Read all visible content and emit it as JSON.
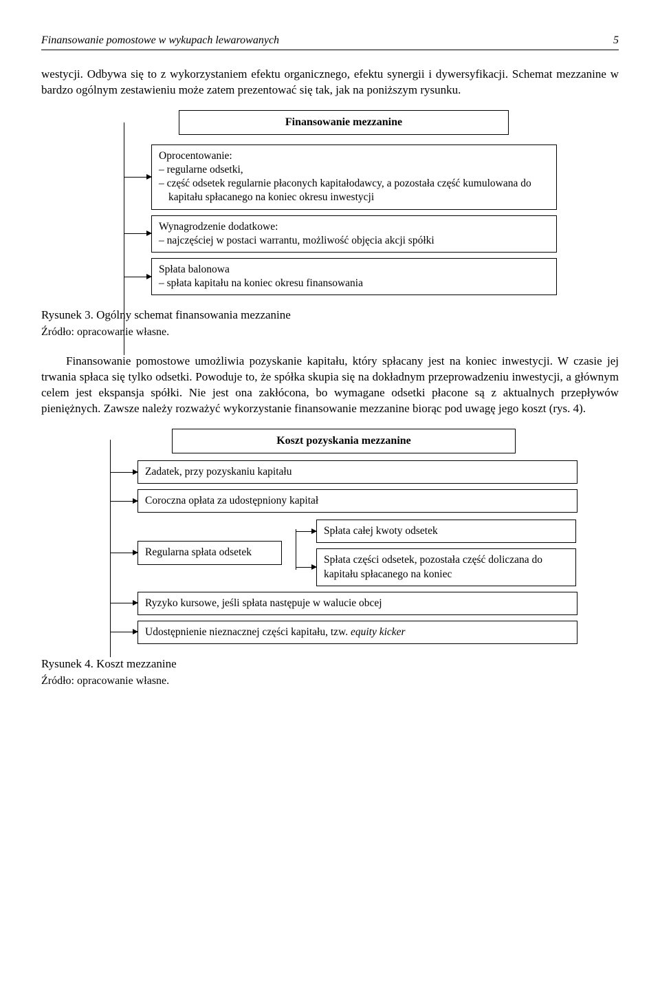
{
  "header": {
    "title": "Finansowanie pomostowe w wykupach lewarowanych",
    "page": "5"
  },
  "para1": "westycji. Odbywa się to z wykorzystaniem efektu organicznego, efektu synergii i dywersyfikacji. Schemat mezzanine w bardzo ogólnym zestawieniu może zatem prezentować się tak, jak na poniższym rysunku.",
  "diagram1": {
    "title": "Finansowanie mezzanine",
    "box1_lead": "Oprocentowanie:",
    "box1_item1": "regularne odsetki,",
    "box1_item2": "część odsetek regularnie płaconych kapitałodawcy, a pozostała część kumulowana do kapitału spłacanego na koniec okresu inwestycji",
    "box2_lead": "Wynagrodzenie dodatkowe:",
    "box2_item1": "najczęściej w postaci warrantu, możliwość objęcia akcji spółki",
    "box3_lead": "Spłata balonowa",
    "box3_item1": "spłata kapitału na koniec okresu finansowania"
  },
  "caption1": "Rysunek 3. Ogólny schemat finansowania mezzanine",
  "source1": "Źródło: opracowanie własne.",
  "para2": "Finansowanie pomostowe umożliwia pozyskanie kapitału, który spłacany jest na koniec inwestycji. W czasie jej trwania spłaca się tylko odsetki. Powoduje to, że spółka skupia się na dokładnym przeprowadzeniu inwestycji, a głównym celem jest ekspansja spółki. Nie jest ona zakłócona, bo wymagane odsetki płacone są z aktualnych przepływów pieniężnych. Zawsze należy rozważyć wykorzystanie finansowanie mezzanine biorąc pod uwagę jego koszt (rys. 4).",
  "diagram2": {
    "title": "Koszt pozyskania mezzanine",
    "b1": "Zadatek, przy pozyskaniu kapitału",
    "b2": "Coroczna opłata za udostępniony kapitał",
    "b3": "Regularna spłata odsetek",
    "b3a": "Spłata całej kwoty odsetek",
    "b3b": "Spłata części odsetek, pozostała część doliczana do kapitału spłacanego na koniec",
    "b4": "Ryzyko kursowe, jeśli spłata następuje w walucie obcej",
    "b5_pre": "Udostępnienie nieznacznej części kapitału, tzw. ",
    "b5_em": "equity kicker"
  },
  "caption2": "Rysunek 4. Koszt mezzanine",
  "source2": "Źródło: opracowanie własne."
}
